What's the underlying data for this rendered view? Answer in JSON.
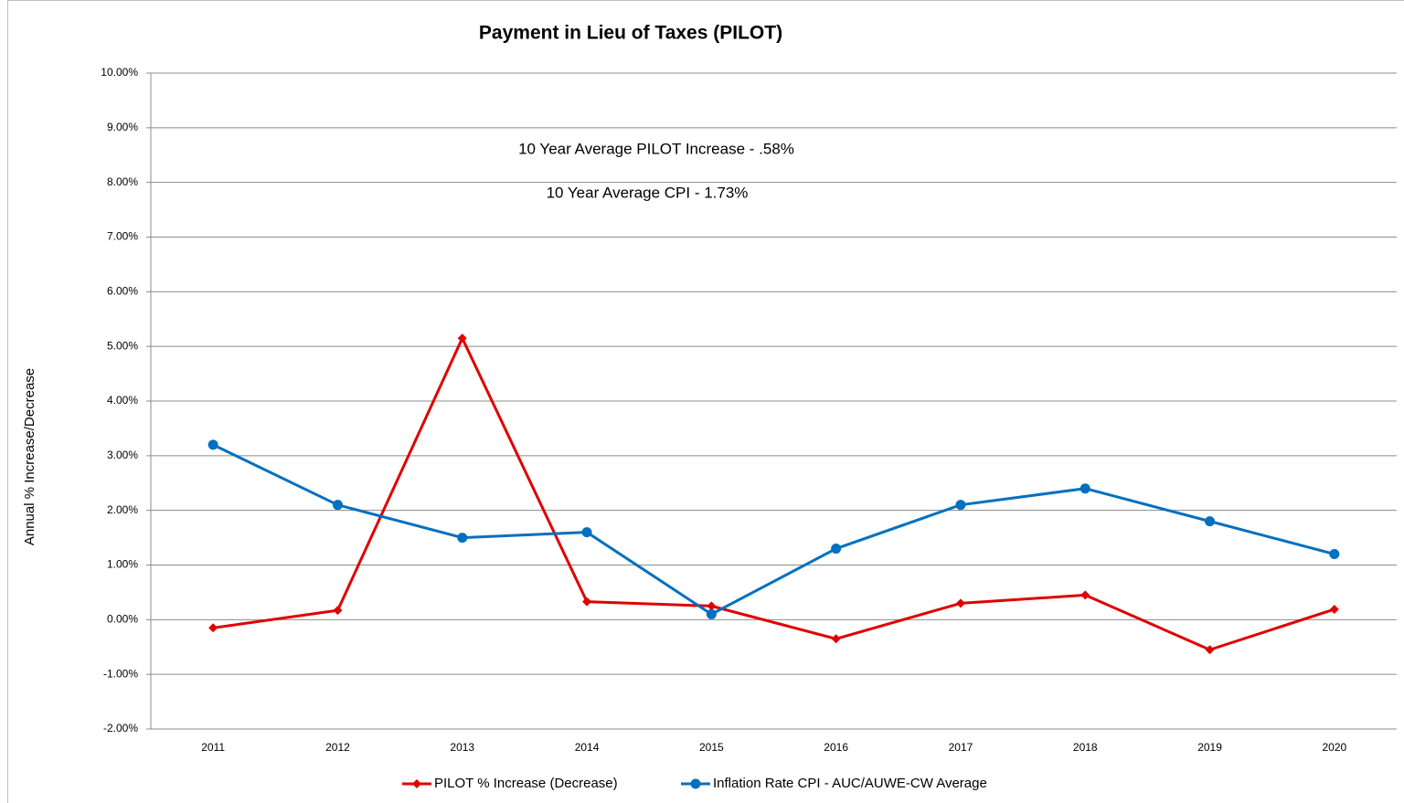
{
  "chart_data": {
    "type": "line",
    "title": "Payment in Lieu of Taxes (PILOT)",
    "y_label": "Annual % Increase/Decrease",
    "annotations": [
      "10 Year Average PILOT Increase  - .58%",
      "10 Year Average CPI - 1.73%"
    ],
    "categories": [
      "2011",
      "2012",
      "2013",
      "2014",
      "2015",
      "2016",
      "2017",
      "2018",
      "2019",
      "2020"
    ],
    "series": [
      {
        "name": "PILOT % Increase (Decrease)",
        "color": "#e00000",
        "marker": "diamond",
        "values": [
          -0.15,
          0.17,
          5.15,
          0.33,
          0.25,
          -0.35,
          0.3,
          0.45,
          -0.55,
          0.19
        ]
      },
      {
        "name": "Inflation Rate CPI - AUC/AUWE-CW Average",
        "color": "#0070c0",
        "marker": "circle",
        "values": [
          3.2,
          2.1,
          1.5,
          1.6,
          0.1,
          1.3,
          2.1,
          2.4,
          1.8,
          1.2
        ]
      }
    ],
    "ylim": [
      -2,
      10
    ],
    "yticks": [
      {
        "value": -2,
        "label": "-2.00%"
      },
      {
        "value": -1,
        "label": "-1.00%"
      },
      {
        "value": 0,
        "label": "0.00%"
      },
      {
        "value": 1,
        "label": "1.00%"
      },
      {
        "value": 2,
        "label": "2.00%"
      },
      {
        "value": 3,
        "label": "3.00%"
      },
      {
        "value": 4,
        "label": "4.00%"
      },
      {
        "value": 5,
        "label": "5.00%"
      },
      {
        "value": 6,
        "label": "6.00%"
      },
      {
        "value": 7,
        "label": "7.00%"
      },
      {
        "value": 8,
        "label": "8.00%"
      },
      {
        "value": 9,
        "label": "9.00%"
      },
      {
        "value": 10,
        "label": "10.00%"
      }
    ],
    "grid": true,
    "legend": "bottom"
  }
}
